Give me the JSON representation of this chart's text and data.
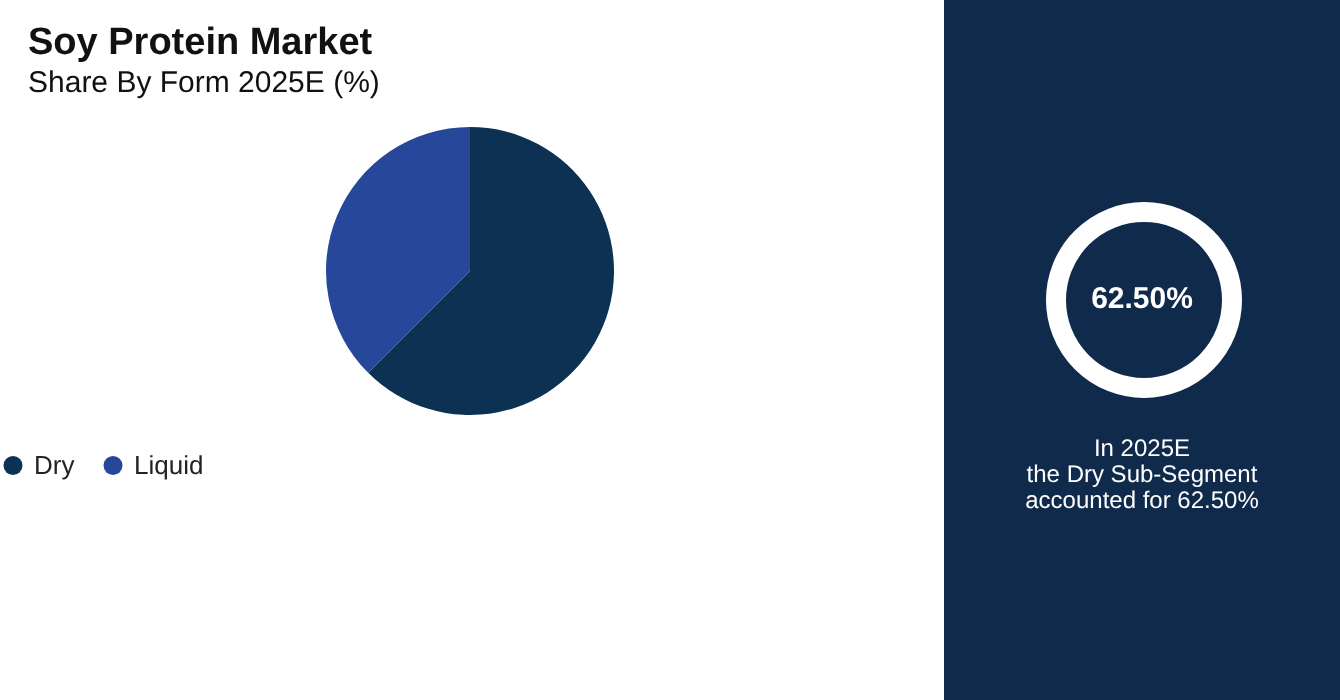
{
  "chart_data": {
    "type": "pie",
    "title": "Soy Protein Market",
    "subtitle": "Share By Form 2025E (%)",
    "categories": [
      "Dry",
      "Liquid"
    ],
    "values": [
      62.5,
      37.5
    ],
    "colors": [
      "#0d3152",
      "#26479a"
    ],
    "legend": "bottom",
    "annotations": [
      "62.50%",
      "In 2025E\nthe Dry Sub-Segment\naccounted for 62.50%"
    ]
  }
}
